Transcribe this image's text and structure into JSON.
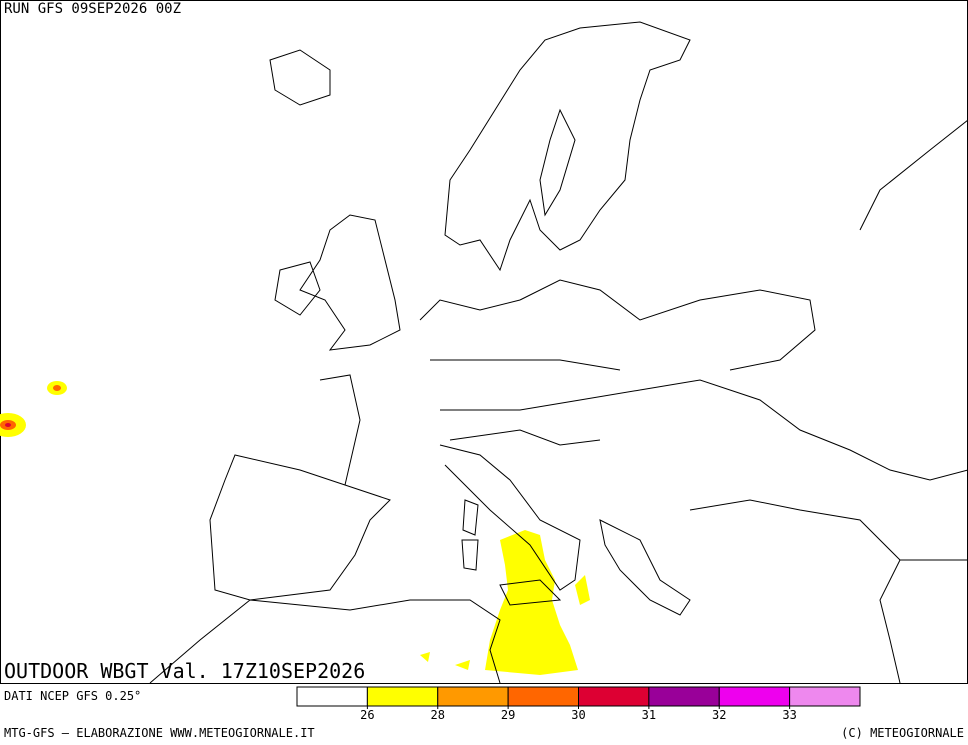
{
  "header": {
    "run": "RUN GFS 09SEP2026 00Z"
  },
  "map": {
    "title": "OUTDOOR WBGT Val. 17Z10SEP2026"
  },
  "legend": {
    "source": "DATI NCEP GFS 0.25°",
    "colors": [
      "#ffffff",
      "#ffff00",
      "#ff9900",
      "#ff6600",
      "#dd0033",
      "#990099",
      "#ee00ee",
      "#ee88ee"
    ],
    "thresholds": [
      26,
      28,
      29,
      30,
      31,
      32,
      33
    ]
  },
  "footer": {
    "left": "MTG-GFS — ELABORAZIONE WWW.METEOGIORNALE.IT",
    "right": "(C) METEOGIORNALE"
  }
}
